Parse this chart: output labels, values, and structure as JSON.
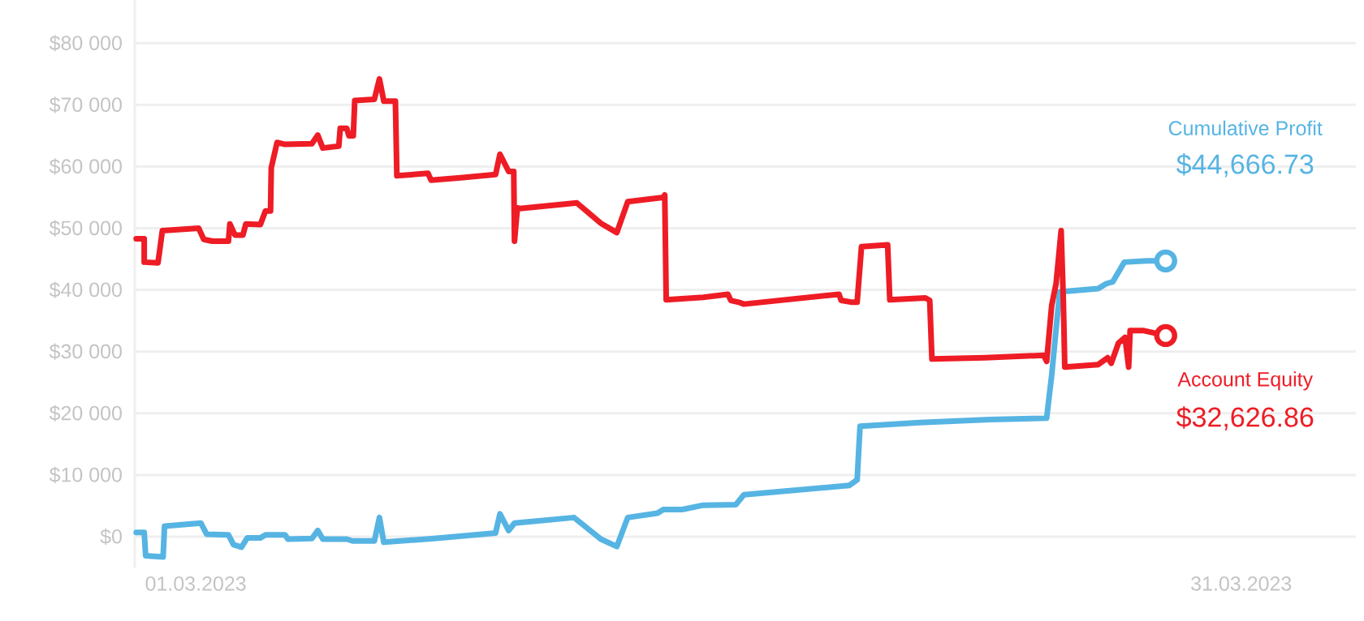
{
  "chart_data": {
    "type": "line",
    "grid": "y",
    "marker": "none",
    "line_style": "solid",
    "xlim": [
      "2023-02-27T06:00",
      "2023-04-03T07:00"
    ],
    "ylim": [
      -5000,
      87000
    ],
    "xticks": [
      {
        "value": "2023-03-01",
        "label": "01.03.2023"
      },
      {
        "value": "2023-03-31",
        "label": "31.03.2023"
      }
    ],
    "yticks": [
      {
        "value": 0,
        "label": "$0"
      },
      {
        "value": 10000,
        "label": "$10 000"
      },
      {
        "value": 20000,
        "label": "$20 000"
      },
      {
        "value": 30000,
        "label": "$30 000"
      },
      {
        "value": 40000,
        "label": "$40 000"
      },
      {
        "value": 50000,
        "label": "$50 000"
      },
      {
        "value": 60000,
        "label": "$60 000"
      },
      {
        "value": 70000,
        "label": "$70 000"
      },
      {
        "value": 80000,
        "label": "$80 000"
      }
    ],
    "series": [
      {
        "name": "Cumulative Profit",
        "color": "#56b4e3",
        "x": [
          "2023-02-27T07:00",
          "2023-02-27T12:30",
          "2023-02-27T13:30",
          "2023-02-28T01:30",
          "2023-02-28T02:30",
          "2023-03-01T03:30",
          "2023-03-01T07:30",
          "2023-03-01T22:30",
          "2023-03-02T02:00",
          "2023-03-02T07:30",
          "2023-03-02T11:30",
          "2023-03-02T20:30",
          "2023-03-03T00:00",
          "2023-03-03T13:30",
          "2023-03-03T15:30",
          "2023-03-04T08:00",
          "2023-03-04T12:00",
          "2023-03-04T15:30",
          "2023-03-05T08:00",
          "2023-03-05T12:00",
          "2023-03-06T03:00",
          "2023-03-06T06:30",
          "2023-03-06T09:30",
          "2023-03-07T20:00",
          "2023-03-09T14:30",
          "2023-03-09T17:30",
          "2023-03-09T23:30",
          "2023-03-10T03:30",
          "2023-03-11T20:30",
          "2023-03-12T15:00",
          "2023-03-13T02:00",
          "2023-03-13T09:30",
          "2023-03-14T06:00",
          "2023-03-14T10:00",
          "2023-03-14T23:00",
          "2023-03-15T13:30",
          "2023-03-16T12:00",
          "2023-03-16T17:30",
          "2023-03-19T18:00",
          "2023-03-19T23:30",
          "2023-03-20T01:30",
          "2023-03-21T18:30",
          "2023-03-23T19:00",
          "2023-03-25T10:00",
          "2023-03-25T13:30",
          "2023-03-25T19:00",
          "2023-03-26T21:30",
          "2023-03-27T03:00",
          "2023-03-27T07:30",
          "2023-03-27T15:30",
          "2023-03-28T07:00",
          "2023-03-28T20:00"
        ],
        "values": [
          700,
          700,
          -3100,
          -3300,
          1700,
          2200,
          400,
          300,
          -1300,
          -1700,
          -200,
          -200,
          300,
          300,
          -400,
          -300,
          1000,
          -400,
          -400,
          -700,
          -700,
          3100,
          -900,
          -300,
          600,
          3700,
          1000,
          2200,
          3100,
          -400,
          -1600,
          3100,
          3800,
          4400,
          4400,
          5100,
          5200,
          6800,
          8300,
          9200,
          17900,
          18500,
          19000,
          19200,
          26200,
          39700,
          40200,
          41000,
          41300,
          44500,
          44700,
          44700
        ]
      },
      {
        "name": "Account Equity",
        "color": "#ee1c25",
        "x": [
          "2023-02-27T07:00",
          "2023-02-27T12:30",
          "2023-02-27T12:30",
          "2023-02-27T22:00",
          "2023-02-28T01:00",
          "2023-03-01T02:00",
          "2023-03-01T05:30",
          "2023-03-01T11:30",
          "2023-03-01T22:30",
          "2023-03-01T23:30",
          "2023-03-02T03:00",
          "2023-03-02T08:30",
          "2023-03-02T10:30",
          "2023-03-02T20:30",
          "2023-03-03T00:00",
          "2023-03-03T03:30",
          "2023-03-03T04:00",
          "2023-03-03T08:00",
          "2023-03-03T13:30",
          "2023-03-04T08:00",
          "2023-03-04T12:00",
          "2023-03-04T15:30",
          "2023-03-05T02:30",
          "2023-03-05T03:30",
          "2023-03-05T08:00",
          "2023-03-05T09:30",
          "2023-03-05T12:30",
          "2023-03-05T13:30",
          "2023-03-06T03:00",
          "2023-03-06T06:30",
          "2023-03-06T09:30",
          "2023-03-06T17:30",
          "2023-03-06T18:30",
          "2023-03-07T16:00",
          "2023-03-07T18:00",
          "2023-03-08T14:30",
          "2023-03-09T14:30",
          "2023-03-09T17:30",
          "2023-03-09T23:30",
          "2023-03-10T03:00",
          "2023-03-10T03:30",
          "2023-03-10T05:30",
          "2023-03-10T07:00",
          "2023-03-11T22:30",
          "2023-03-12T15:00",
          "2023-03-13T02:00",
          "2023-03-13T09:30",
          "2023-03-14T10:00",
          "2023-03-14T11:00",
          "2023-03-14T12:00",
          "2023-03-15T13:30",
          "2023-03-16T06:30",
          "2023-03-16T08:30",
          "2023-03-16T14:00",
          "2023-03-16T17:30",
          "2023-03-19T11:00",
          "2023-03-19T12:30",
          "2023-03-19T20:00",
          "2023-03-19T23:30",
          "2023-03-20T02:30",
          "2023-03-20T20:30",
          "2023-03-20T22:00",
          "2023-03-21T22:30",
          "2023-03-22T01:30",
          "2023-03-22T03:00",
          "2023-03-23T15:30",
          "2023-03-25T08:00",
          "2023-03-25T10:00",
          "2023-03-25T13:30",
          "2023-03-25T16:30",
          "2023-03-25T20:00",
          "2023-03-25T21:30",
          "2023-03-25T22:30",
          "2023-03-26T21:30",
          "2023-03-27T04:00",
          "2023-03-27T06:30",
          "2023-03-27T11:30",
          "2023-03-27T16:00",
          "2023-03-27T18:30",
          "2023-03-27T19:30",
          "2023-03-28T05:00",
          "2023-03-28T20:00"
        ],
        "values": [
          48300,
          48300,
          44500,
          44400,
          49600,
          50000,
          48200,
          47900,
          47900,
          50700,
          48900,
          48900,
          50700,
          50600,
          52800,
          52800,
          59800,
          63900,
          63600,
          63700,
          65100,
          63000,
          63300,
          66200,
          66200,
          65000,
          65000,
          70700,
          70900,
          74200,
          70600,
          70600,
          58500,
          58900,
          57800,
          58200,
          58700,
          62000,
          59200,
          59200,
          47900,
          53300,
          53200,
          54100,
          50800,
          49300,
          54300,
          55000,
          55400,
          38400,
          38800,
          39300,
          38300,
          38000,
          37700,
          39300,
          38300,
          38000,
          38000,
          47000,
          47300,
          38400,
          38700,
          38300,
          28800,
          29000,
          29400,
          28400,
          37500,
          41000,
          49600,
          38400,
          27500,
          27900,
          29000,
          28100,
          31400,
          32300,
          27500,
          33400,
          33400,
          32600
        ]
      }
    ],
    "annotations": [
      "$44,666.73",
      "$32,626.86"
    ]
  }
}
